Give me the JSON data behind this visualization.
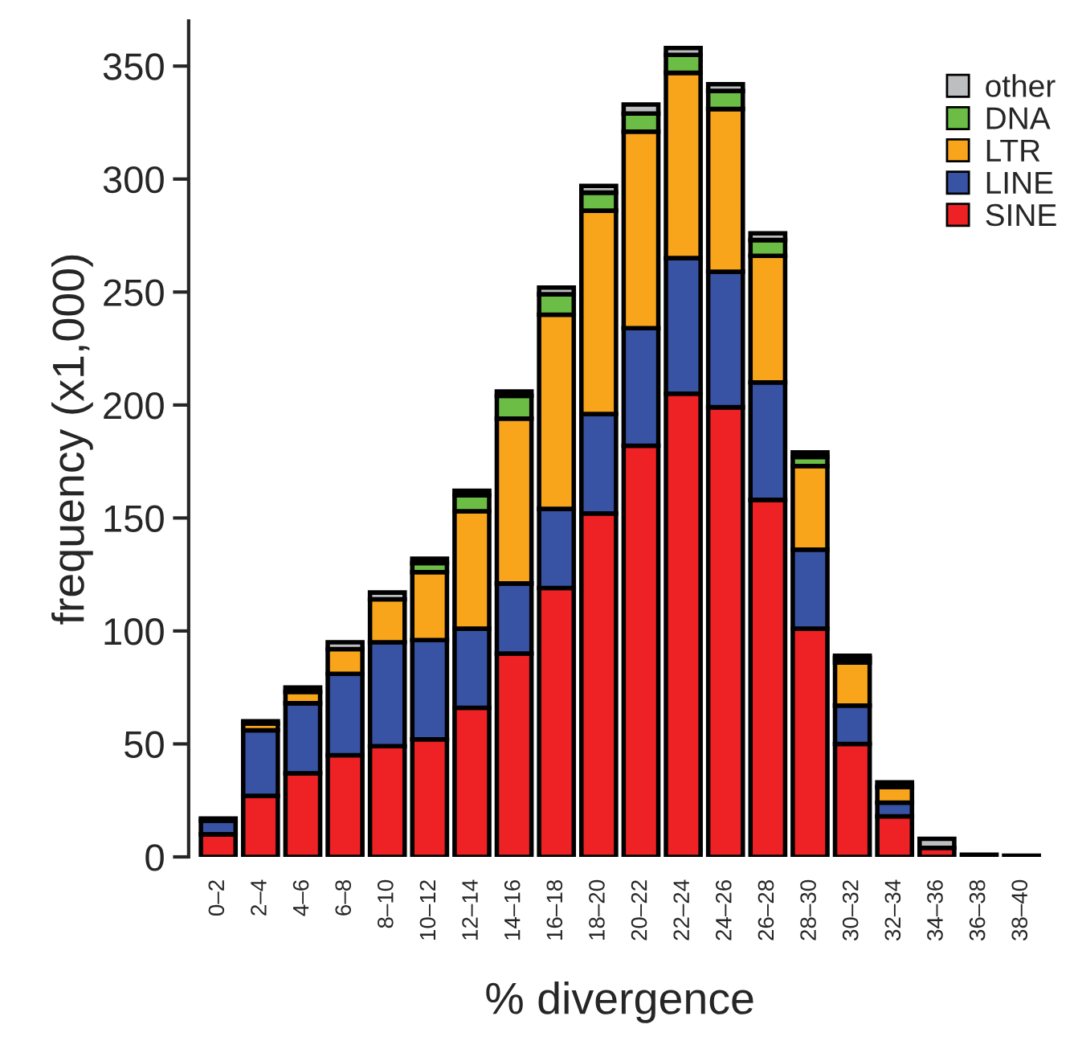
{
  "chart_data": {
    "type": "bar",
    "stacked": true,
    "xlabel": "% divergence",
    "ylabel": "frequency (x1,000)",
    "categories": [
      "0–2",
      "2–4",
      "4–6",
      "6–8",
      "8–10",
      "10–12",
      "12–14",
      "14–16",
      "16–18",
      "18–20",
      "20–22",
      "22–24",
      "24–26",
      "26–28",
      "28–30",
      "30–32",
      "32–34",
      "34–36",
      "36–38",
      "38–40"
    ],
    "series": [
      {
        "name": "SINE",
        "color": "#ee2224",
        "values": [
          10,
          27,
          37,
          45,
          49,
          52,
          66,
          90,
          119,
          152,
          182,
          205,
          199,
          158,
          101,
          50,
          18,
          4,
          null,
          null
        ]
      },
      {
        "name": "LINE",
        "color": "#3953a4",
        "values": [
          6,
          29,
          31,
          36,
          46,
          44,
          35,
          31,
          35,
          44,
          52,
          60,
          60,
          52,
          35,
          17,
          6,
          null,
          null,
          null
        ]
      },
      {
        "name": "LTR",
        "color": "#f9a51b",
        "values": [
          null,
          3,
          5,
          11,
          19,
          30,
          52,
          73,
          86,
          90,
          87,
          82,
          72,
          56,
          37,
          19,
          7,
          null,
          null,
          null
        ]
      },
      {
        "name": "DNA",
        "color": "#6cbd45",
        "values": [
          null,
          null,
          null,
          null,
          null,
          4,
          7,
          10,
          9,
          8,
          8,
          8,
          8,
          7,
          4,
          2,
          null,
          null,
          null,
          null
        ]
      },
      {
        "name": "other",
        "color": "#bcbec0",
        "values": [
          1,
          1,
          2,
          3,
          3,
          2,
          2,
          2,
          3,
          3,
          4,
          3,
          3,
          3,
          2,
          1,
          2,
          4,
          1,
          0.5
        ]
      }
    ],
    "ylim": [
      0,
      370
    ],
    "yticks": [
      0,
      50,
      100,
      150,
      200,
      250,
      300,
      350
    ],
    "legend": "top right",
    "grid": false
  }
}
